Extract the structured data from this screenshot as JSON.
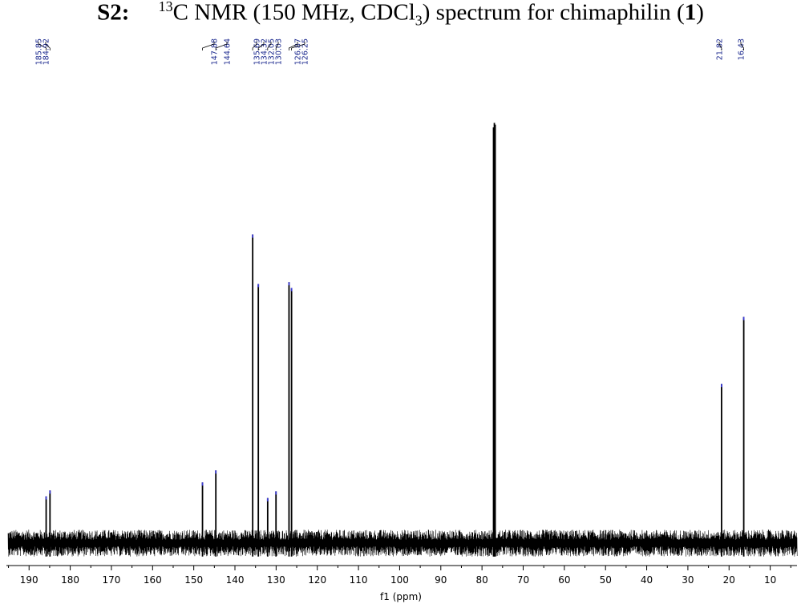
{
  "title": {
    "label_prefix": "S2:",
    "sup": "13",
    "main_a": "C NMR (150 MHz, CDCl",
    "sub": "3",
    "main_b": ") spectrum for chimaphilin (",
    "compound": "1",
    "close": ")"
  },
  "chart_data": {
    "type": "line",
    "title": "S2: 13C NMR (150 MHz, CDCl3) spectrum for chimaphilin (1)",
    "xlabel": "f1 (ppm)",
    "ylabel": "",
    "x_reversed": true,
    "xlim": [
      195.5,
      3.5
    ],
    "xticks": [
      190,
      180,
      170,
      160,
      150,
      140,
      130,
      120,
      110,
      100,
      90,
      80,
      70,
      60,
      50,
      40,
      30,
      20,
      10
    ],
    "grid": false,
    "legend": "none",
    "ylim": [
      0,
      1.0
    ],
    "baseline_noise": 0.03,
    "peaks": [
      {
        "ppm": 185.85,
        "intensity": 0.105,
        "label": "185.85"
      },
      {
        "ppm": 184.92,
        "intensity": 0.118,
        "label": "184.92"
      },
      {
        "ppm": 147.88,
        "intensity": 0.136,
        "label": "147.88"
      },
      {
        "ppm": 144.64,
        "intensity": 0.163,
        "label": "144.64"
      },
      {
        "ppm": 135.69,
        "intensity": 0.692,
        "label": "135.69"
      },
      {
        "ppm": 134.32,
        "intensity": 0.581,
        "label": "134.32"
      },
      {
        "ppm": 132.05,
        "intensity": 0.101,
        "label": "132.05"
      },
      {
        "ppm": 130.03,
        "intensity": 0.116,
        "label": "130.03"
      },
      {
        "ppm": 126.87,
        "intensity": 0.585,
        "label": "126.87"
      },
      {
        "ppm": 126.25,
        "intensity": 0.572,
        "label": "126.25"
      },
      {
        "ppm": 77.2,
        "intensity": 0.932,
        "label": ""
      },
      {
        "ppm": 77.0,
        "intensity": 0.942,
        "label": ""
      },
      {
        "ppm": 76.8,
        "intensity": 0.938,
        "label": ""
      },
      {
        "ppm": 21.82,
        "intensity": 0.357,
        "label": "21.82"
      },
      {
        "ppm": 16.43,
        "intensity": 0.507,
        "label": "16.43"
      }
    ]
  },
  "colors": {
    "spectrum": "#000000",
    "peak_label": "#1c2a8f",
    "peak_tip": "#3b3bd6"
  }
}
